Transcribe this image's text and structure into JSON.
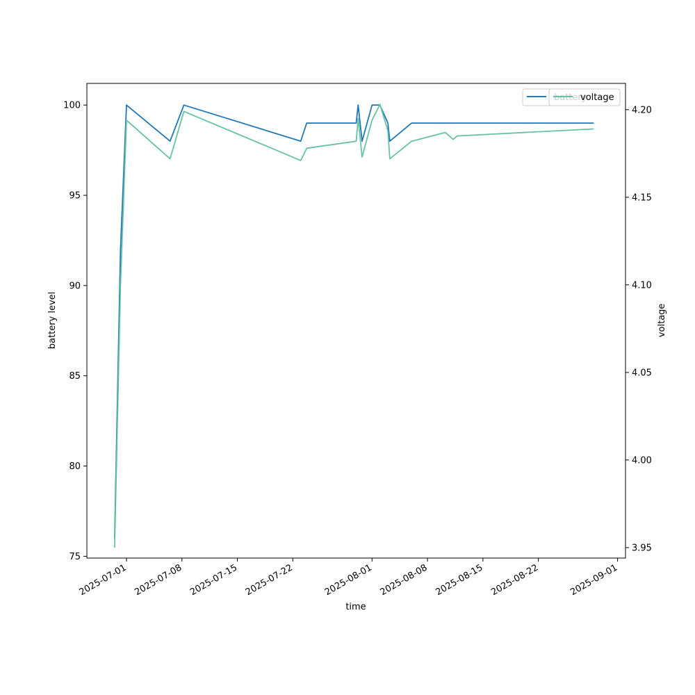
{
  "chart_data": {
    "type": "line",
    "xlabel": "time",
    "ylabel_left": "battery level",
    "ylabel_right": "voltage",
    "x_ticks": [
      "2025-07-01",
      "2025-07-08",
      "2025-07-15",
      "2025-07-22",
      "2025-08-01",
      "2025-08-08",
      "2025-08-15",
      "2025-08-22",
      "2025-09-01"
    ],
    "xlim": [
      "2025-06-26",
      "2025-09-02"
    ],
    "y_left_ticks": [
      75,
      80,
      85,
      90,
      95,
      100
    ],
    "y_left_lim": [
      74.9,
      101.2
    ],
    "y_right_ticks": [
      3.95,
      4.0,
      4.05,
      4.1,
      4.15,
      4.2
    ],
    "y_right_lim": [
      3.944,
      4.215
    ],
    "grid": false,
    "legend_placement": "top-right",
    "series": [
      {
        "name": "battery",
        "axis": "left",
        "color": "#1f77b4",
        "points": [
          [
            "2025-06-29 12:00",
            76
          ],
          [
            "2025-06-30 06:00",
            92
          ],
          [
            "2025-07-01 00:00",
            100
          ],
          [
            "2025-07-06 12:00",
            98
          ],
          [
            "2025-07-08 06:00",
            100
          ],
          [
            "2025-07-23 00:00",
            98
          ],
          [
            "2025-07-23 18:00",
            99
          ],
          [
            "2025-07-30 00:00",
            99
          ],
          [
            "2025-07-30 06:00",
            100
          ],
          [
            "2025-07-30 18:00",
            98
          ],
          [
            "2025-08-01 00:00",
            100
          ],
          [
            "2025-08-02 00:00",
            100
          ],
          [
            "2025-08-03 00:00",
            99
          ],
          [
            "2025-08-03 06:00",
            98
          ],
          [
            "2025-08-06 00:00",
            99
          ],
          [
            "2025-08-29 00:00",
            99
          ]
        ]
      },
      {
        "name": "voltage",
        "axis": "right",
        "color": "#66c2a5",
        "points": [
          [
            "2025-06-29 12:00",
            3.95
          ],
          [
            "2025-06-30 06:00",
            4.1
          ],
          [
            "2025-07-01 00:00",
            4.194
          ],
          [
            "2025-07-06 12:00",
            4.172
          ],
          [
            "2025-07-08 06:00",
            4.199
          ],
          [
            "2025-07-23 00:00",
            4.171
          ],
          [
            "2025-07-23 18:00",
            4.178
          ],
          [
            "2025-07-30 00:00",
            4.182
          ],
          [
            "2025-07-30 06:00",
            4.195
          ],
          [
            "2025-07-30 18:00",
            4.173
          ],
          [
            "2025-08-01 00:00",
            4.194
          ],
          [
            "2025-08-02 00:00",
            4.203
          ],
          [
            "2025-08-03 00:00",
            4.188
          ],
          [
            "2025-08-03 06:00",
            4.172
          ],
          [
            "2025-08-06 00:00",
            4.182
          ],
          [
            "2025-08-10 06:00",
            4.187
          ],
          [
            "2025-08-11 06:00",
            4.183
          ],
          [
            "2025-08-11 18:00",
            4.185
          ],
          [
            "2025-08-29 00:00",
            4.189
          ]
        ]
      }
    ]
  }
}
